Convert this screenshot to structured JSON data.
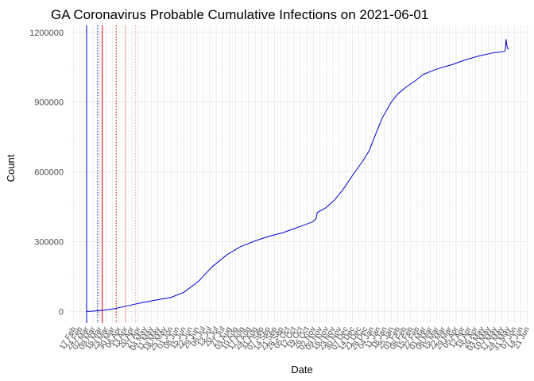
{
  "chart_data": {
    "type": "line",
    "title": "GA Coronavirus Probable Cumulative Infections on 2021-06-01",
    "xlabel": "Date",
    "ylabel": "Count",
    "ylim": [
      -50000,
      1230000
    ],
    "xlim": [
      "2020-02-13",
      "2021-06-23"
    ],
    "y_ticks": [
      0,
      300000,
      600000,
      900000,
      1200000
    ],
    "y_tick_labels": [
      "0",
      "300000",
      "600000",
      "900000",
      "1200000"
    ],
    "x_ticks": [
      "2020-02-17",
      "2020-02-24",
      "2020-03-02",
      "2020-03-09",
      "2020-03-16",
      "2020-03-23",
      "2020-03-30",
      "2020-04-06",
      "2020-04-13",
      "2020-04-20",
      "2020-04-27",
      "2020-05-04",
      "2020-05-11",
      "2020-05-18",
      "2020-05-25",
      "2020-06-01",
      "2020-06-08",
      "2020-06-15",
      "2020-06-22",
      "2020-06-29",
      "2020-07-06",
      "2020-07-13",
      "2020-07-20",
      "2020-07-27",
      "2020-08-03",
      "2020-08-10",
      "2020-08-17",
      "2020-08-24",
      "2020-08-31",
      "2020-09-07",
      "2020-09-14",
      "2020-09-21",
      "2020-09-28",
      "2020-10-05",
      "2020-10-12",
      "2020-10-19",
      "2020-10-26",
      "2020-11-02",
      "2020-11-09",
      "2020-11-16",
      "2020-11-23",
      "2020-11-30",
      "2020-12-07",
      "2020-12-14",
      "2020-12-21",
      "2020-12-28",
      "2021-01-04",
      "2021-01-11",
      "2021-01-18",
      "2021-01-25",
      "2021-02-01",
      "2021-02-08",
      "2021-02-15",
      "2021-02-22",
      "2021-03-01",
      "2021-03-08",
      "2021-03-15",
      "2021-03-22",
      "2021-03-29",
      "2021-04-05",
      "2021-04-12",
      "2021-04-19",
      "2021-04-26",
      "2021-05-03",
      "2021-05-10",
      "2021-05-17",
      "2021-05-24",
      "2021-05-31",
      "2021-06-07",
      "2021-06-14",
      "2021-06-21"
    ],
    "x_tick_labels": [
      "17 Feb",
      "24 Feb",
      "02 Mar",
      "09 Mar",
      "16 Mar",
      "23 Mar",
      "30 Mar",
      "06 Apr",
      "13 Apr",
      "20 Apr",
      "27 Apr",
      "04 May",
      "11 May",
      "18 May",
      "25 May",
      "01 Jun",
      "08 Jun",
      "15 Jun",
      "22 Jun",
      "29 Jun",
      "06 Jul",
      "13 Jul",
      "20 Jul",
      "27 Jul",
      "03 Aug",
      "10 Aug",
      "17 Aug",
      "24 Aug",
      "31 Aug",
      "07 Sep",
      "14 Sep",
      "21 Sep",
      "28 Sep",
      "05 Oct",
      "12 Oct",
      "19 Oct",
      "26 Oct",
      "02 Nov",
      "09 Nov",
      "16 Nov",
      "23 Nov",
      "30 Nov",
      "07 Dec",
      "14 Dec",
      "21 Dec",
      "28 Dec",
      "04 Jan",
      "11 Jan",
      "18 Jan",
      "25 Jan",
      "01 Feb",
      "08 Feb",
      "15 Feb",
      "22 Feb",
      "01 Mar",
      "08 Mar",
      "15 Mar",
      "22 Mar",
      "29 Mar",
      "05 Apr",
      "12 Apr",
      "19 Apr",
      "26 Apr",
      "03 May",
      "10 May",
      "17 May",
      "24 May",
      "31 May",
      "07 Jun",
      "14 Jun",
      "21 Jun"
    ],
    "series": [
      {
        "color": "#0000cc",
        "x": [
          "2020-03-02",
          "2020-03-10",
          "2020-03-20",
          "2020-04-01",
          "2020-04-15",
          "2020-05-01",
          "2020-05-15",
          "2020-06-01",
          "2020-06-15",
          "2020-07-01",
          "2020-07-15",
          "2020-08-01",
          "2020-08-15",
          "2020-09-01",
          "2020-09-15",
          "2020-10-01",
          "2020-10-15",
          "2020-11-01",
          "2020-11-05",
          "2020-11-06",
          "2020-11-15",
          "2020-11-25",
          "2020-12-05",
          "2020-12-15",
          "2020-12-25",
          "2021-01-01",
          "2021-01-05",
          "2021-01-10",
          "2021-01-15",
          "2021-01-25",
          "2021-02-01",
          "2021-02-10",
          "2021-02-20",
          "2021-03-01",
          "2021-03-15",
          "2021-04-01",
          "2021-04-15",
          "2021-05-01",
          "2021-05-15",
          "2021-05-27",
          "2021-05-28",
          "2021-05-29",
          "2021-05-30",
          "2021-05-31",
          "2021-06-01"
        ],
        "y": [
          0,
          1500,
          5000,
          12000,
          24000,
          38000,
          48000,
          60000,
          82000,
          130000,
          190000,
          245000,
          278000,
          305000,
          323000,
          340000,
          360000,
          385000,
          400000,
          425000,
          445000,
          480000,
          530000,
          590000,
          645000,
          690000,
          730000,
          780000,
          830000,
          900000,
          935000,
          965000,
          992000,
          1020000,
          1042000,
          1062000,
          1082000,
          1100000,
          1112000,
          1118000,
          1120000,
          1170000,
          1140000,
          1128000,
          1130000
        ]
      }
    ],
    "reference_lines": [
      {
        "x": "2020-03-02",
        "color": "#0000cc",
        "style": "solid"
      },
      {
        "x": "2020-03-14",
        "color": "#0000cc",
        "style": "dotted"
      },
      {
        "x": "2020-03-19",
        "color": "#cc0000",
        "style": "solid"
      },
      {
        "x": "2020-04-03",
        "color": "#cc0000",
        "style": "dotted"
      },
      {
        "x": "2020-04-13",
        "color": "#f4a0a0",
        "style": "solid"
      },
      {
        "x": "2020-04-24",
        "color": "#f4a0a0",
        "style": "dotted"
      }
    ],
    "grid": true
  }
}
